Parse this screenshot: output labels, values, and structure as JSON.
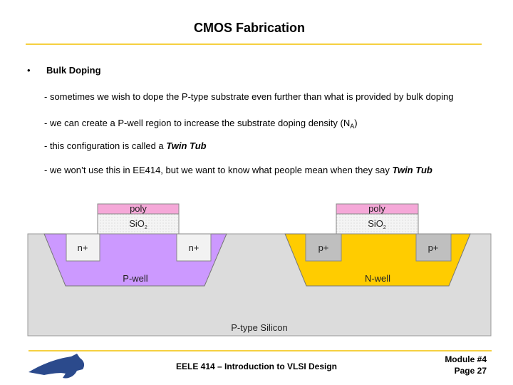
{
  "header": {
    "title": "CMOS Fabrication"
  },
  "body": {
    "bullet": "Bulk Doping",
    "lines": [
      [
        "- sometimes we wish to dope the P-type substrate even further than what is provided by bulk doping"
      ],
      [
        "- we can create a P-well region to increase the substrate doping density (N",
        "A",
        ")"
      ],
      [
        "- this configuration is called a ",
        "Twin Tub"
      ],
      [
        "- we won’t use this in EE414, but we want to know what people mean when they say ",
        "Twin Tub"
      ]
    ]
  },
  "diagram": {
    "poly": "poly",
    "oxide": "SiO",
    "oxide_sub": "2",
    "n_plus": "n+",
    "p_plus": "p+",
    "p_well": "P-well",
    "n_well": "N-well",
    "substrate": "P-type Silicon"
  },
  "footer": {
    "course": "EELE 414 – Introduction to VLSI Design",
    "module": "Module #4",
    "page": "Page 27"
  }
}
